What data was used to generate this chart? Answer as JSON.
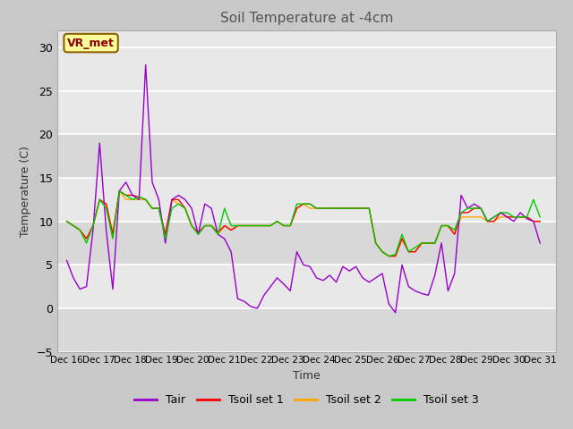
{
  "title": "Soil Temperature at -4cm",
  "xlabel": "Time",
  "ylabel": "Temperature (C)",
  "ylim": [
    -5,
    32
  ],
  "yticks": [
    -5,
    0,
    5,
    10,
    15,
    20,
    25,
    30
  ],
  "fig_bg_color": "#c8c8c8",
  "plot_bg_color": "#e8e8e8",
  "annotation_text": "VR_met",
  "annotation_box_color": "#ffff99",
  "annotation_text_color": "#8b0000",
  "annotation_edge_color": "#8b6000",
  "legend_labels": [
    "Tair",
    "Tsoil set 1",
    "Tsoil set 2",
    "Tsoil set 3"
  ],
  "legend_colors": [
    "#9900cc",
    "#ff0000",
    "#ffa500",
    "#00cc00"
  ],
  "line_colors": {
    "Tair": "#9900cc",
    "Tsoil1": "#ff0000",
    "Tsoil2": "#ffa500",
    "Tsoil3": "#00cc00"
  },
  "title_color": "#555555",
  "xtick_labels": [
    "Dec 16",
    "Dec 17",
    "Dec 18",
    "Dec 19",
    "Dec 20",
    "Dec 21",
    "Dec 22",
    "Dec 23",
    "Dec 24",
    "Dec 25",
    "Dec 26",
    "Dec 27",
    "Dec 28",
    "Dec 29",
    "Dec 30",
    "Dec 31"
  ],
  "Tair": [
    5.5,
    3.5,
    2.2,
    2.5,
    9.0,
    19.0,
    9.0,
    2.2,
    13.5,
    14.5,
    13.0,
    12.5,
    28.0,
    14.5,
    12.5,
    7.5,
    12.5,
    13.0,
    12.5,
    11.5,
    8.5,
    12.0,
    11.5,
    8.5,
    8.0,
    6.5,
    1.1,
    0.8,
    0.2,
    0.0,
    1.5,
    2.5,
    3.5,
    2.8,
    2.0,
    6.5,
    5.0,
    4.8,
    3.5,
    3.2,
    3.8,
    3.0,
    4.8,
    4.3,
    4.8,
    3.5,
    3.0,
    3.5,
    4.0,
    0.5,
    -0.5,
    5.0,
    2.5,
    2.0,
    1.7,
    1.5,
    3.8,
    7.5,
    2.0,
    4.0,
    13.0,
    11.5,
    12.0,
    11.5,
    10.0,
    10.5,
    11.0,
    10.5,
    10.0,
    11.0,
    10.3,
    10.0,
    7.5
  ],
  "Tsoil1": [
    10.0,
    9.5,
    9.0,
    8.0,
    9.5,
    12.5,
    12.0,
    8.5,
    13.5,
    13.0,
    13.0,
    12.8,
    12.5,
    11.5,
    11.5,
    8.5,
    12.5,
    12.5,
    11.5,
    9.5,
    8.7,
    9.5,
    9.5,
    8.7,
    9.5,
    9.0,
    9.5,
    9.5,
    9.5,
    9.5,
    9.5,
    9.5,
    10.0,
    9.5,
    9.5,
    11.5,
    12.0,
    12.0,
    11.5,
    11.5,
    11.5,
    11.5,
    11.5,
    11.5,
    11.5,
    11.5,
    11.5,
    7.5,
    6.5,
    6.0,
    6.0,
    8.0,
    6.5,
    6.5,
    7.5,
    7.5,
    7.5,
    9.5,
    9.5,
    8.5,
    11.0,
    11.0,
    11.5,
    11.5,
    10.0,
    10.0,
    11.0,
    10.5,
    10.5,
    10.5,
    10.5,
    10.0,
    10.0
  ],
  "Tsoil2": [
    10.0,
    9.5,
    9.0,
    8.0,
    9.5,
    12.5,
    12.0,
    8.5,
    13.5,
    12.5,
    12.5,
    12.5,
    12.5,
    11.5,
    11.5,
    8.5,
    12.5,
    12.0,
    11.5,
    9.5,
    8.5,
    9.5,
    9.5,
    8.5,
    9.5,
    9.0,
    9.5,
    9.5,
    9.5,
    9.5,
    9.5,
    9.5,
    10.0,
    9.5,
    9.5,
    11.5,
    12.0,
    11.5,
    11.5,
    11.5,
    11.5,
    11.5,
    11.5,
    11.5,
    11.5,
    11.5,
    11.5,
    7.5,
    6.5,
    6.0,
    6.0,
    8.0,
    6.5,
    6.5,
    7.5,
    7.5,
    7.5,
    9.5,
    9.5,
    8.5,
    10.5,
    10.5,
    10.5,
    10.5,
    10.0,
    10.0,
    10.5,
    10.5,
    10.5,
    10.5,
    10.5,
    10.0,
    10.0
  ],
  "Tsoil3": [
    10.0,
    9.5,
    9.0,
    7.5,
    9.5,
    12.5,
    11.5,
    8.0,
    13.5,
    13.0,
    12.5,
    12.8,
    12.5,
    11.5,
    11.5,
    8.0,
    11.5,
    12.0,
    11.5,
    9.5,
    8.5,
    9.5,
    9.5,
    8.5,
    11.5,
    9.5,
    9.5,
    9.5,
    9.5,
    9.5,
    9.5,
    9.5,
    10.0,
    9.5,
    9.5,
    12.0,
    12.0,
    12.0,
    11.5,
    11.5,
    11.5,
    11.5,
    11.5,
    11.5,
    11.5,
    11.5,
    11.5,
    7.5,
    6.5,
    6.0,
    6.2,
    8.5,
    6.5,
    7.0,
    7.5,
    7.5,
    7.5,
    9.5,
    9.5,
    9.0,
    11.0,
    11.5,
    11.5,
    11.5,
    10.0,
    10.5,
    11.0,
    11.0,
    10.5,
    10.5,
    10.5,
    12.5,
    10.5
  ]
}
